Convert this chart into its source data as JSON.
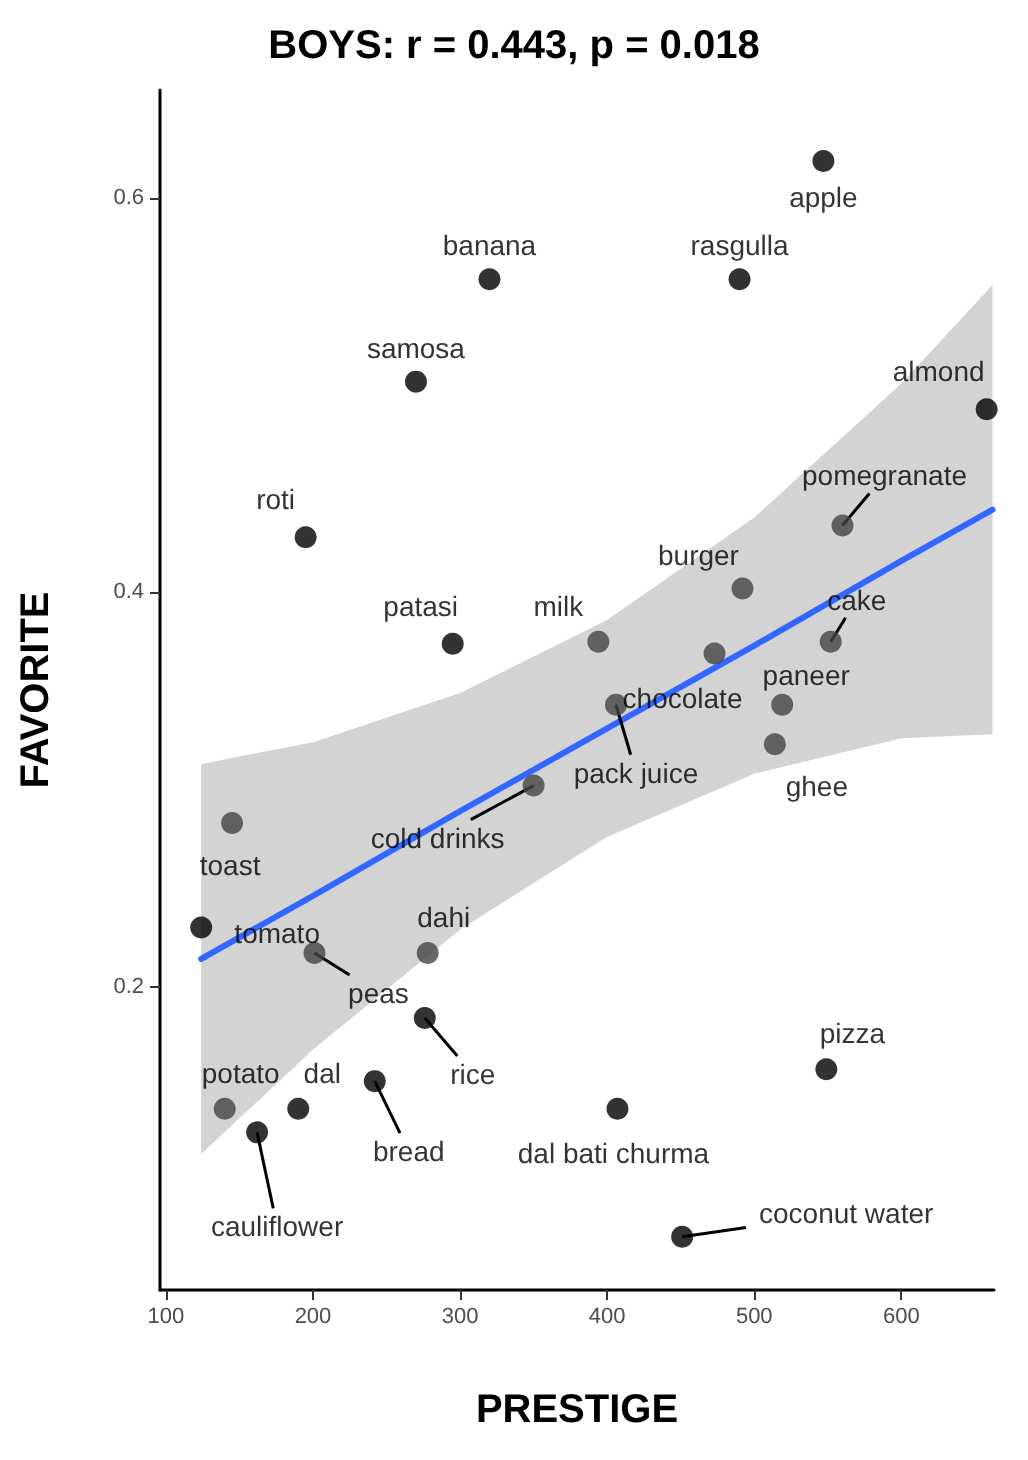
{
  "chart_data": {
    "type": "scatter",
    "title": "BOYS: r = 0.443, p = 0.018",
    "xlabel": "PRESTIGE",
    "ylabel": "FAVORITE",
    "xlim": [
      96,
      663
    ],
    "xticks": [
      100,
      200,
      300,
      400,
      500,
      600
    ],
    "ylim": [
      0.046,
      0.655
    ],
    "yticks": [
      0.2,
      0.4,
      0.6
    ],
    "grid": false,
    "series": [
      {
        "marker": "circle",
        "color": "#000000",
        "x": [
          547,
          320,
          490,
          270,
          658,
          195,
          560,
          492,
          295,
          394,
          473,
          552,
          519,
          514,
          406,
          350,
          145,
          124,
          201,
          278,
          276,
          549,
          242,
          140,
          190,
          407,
          162,
          451
        ],
        "values": [
          0.619,
          0.559,
          0.559,
          0.507,
          0.493,
          0.428,
          0.434,
          0.402,
          0.374,
          0.375,
          0.369,
          0.375,
          0.343,
          0.323,
          0.343,
          0.302,
          0.283,
          0.23,
          0.217,
          0.217,
          0.184,
          0.158,
          0.152,
          0.138,
          0.138,
          0.138,
          0.126,
          0.073
        ],
        "colors": [
          "#000000",
          "#000000",
          "#000000",
          "#000000",
          "#000000",
          "#000000",
          "#444444",
          "#444444",
          "#000000",
          "#444444",
          "#444444",
          "#444444",
          "#444444",
          "#444444",
          "#444444",
          "#444444",
          "#444444",
          "#000000",
          "#444444",
          "#444444",
          "#000000",
          "#000000",
          "#000000",
          "#444444",
          "#000000",
          "#000000",
          "#000000",
          "#000000"
        ]
      },
      {
        "type": "line",
        "color": "#3366ff",
        "line_style": "solid",
        "x": [
          124,
          200,
          300,
          400,
          500,
          600,
          662
        ],
        "values": [
          0.214,
          0.246,
          0.289,
          0.331,
          0.373,
          0.416,
          0.442
        ],
        "lower": [
          0.115,
          0.168,
          0.229,
          0.276,
          0.308,
          0.326,
          0.328
        ],
        "upper": [
          0.313,
          0.324,
          0.349,
          0.386,
          0.438,
          0.506,
          0.556
        ]
      }
    ],
    "annotations": [
      {
        "text": "apple",
        "x": 547,
        "y": 0.619
      },
      {
        "text": "banana",
        "x": 320,
        "y": 0.559
      },
      {
        "text": "rasgulla",
        "x": 490,
        "y": 0.559
      },
      {
        "text": "samosa",
        "x": 270,
        "y": 0.507
      },
      {
        "text": "almond",
        "x": 658,
        "y": 0.493
      },
      {
        "text": "roti",
        "x": 195,
        "y": 0.428
      },
      {
        "text": "pomegranate",
        "x": 560,
        "y": 0.434
      },
      {
        "text": "burger",
        "x": 492,
        "y": 0.402
      },
      {
        "text": "patasi",
        "x": 295,
        "y": 0.374
      },
      {
        "text": "milk",
        "x": 394,
        "y": 0.375
      },
      {
        "text": "chocolate",
        "x": 473,
        "y": 0.369
      },
      {
        "text": "cake",
        "x": 552,
        "y": 0.375
      },
      {
        "text": "paneer",
        "x": 519,
        "y": 0.343
      },
      {
        "text": "ghee",
        "x": 514,
        "y": 0.323
      },
      {
        "text": "pack juice",
        "x": 406,
        "y": 0.343
      },
      {
        "text": "cold drinks",
        "x": 350,
        "y": 0.302
      },
      {
        "text": "toast",
        "x": 145,
        "y": 0.283
      },
      {
        "text": "tomato",
        "x": 124,
        "y": 0.23
      },
      {
        "text": "peas",
        "x": 201,
        "y": 0.217
      },
      {
        "text": "dahi",
        "x": 278,
        "y": 0.217
      },
      {
        "text": "rice",
        "x": 276,
        "y": 0.184
      },
      {
        "text": "pizza",
        "x": 549,
        "y": 0.158
      },
      {
        "text": "bread",
        "x": 242,
        "y": 0.152
      },
      {
        "text": "potato",
        "x": 140,
        "y": 0.138
      },
      {
        "text": "dal",
        "x": 190,
        "y": 0.138
      },
      {
        "text": "dal bati churma",
        "x": 407,
        "y": 0.138
      },
      {
        "text": "cauliflower",
        "x": 162,
        "y": 0.126
      },
      {
        "text": "coconut water",
        "x": 451,
        "y": 0.073
      }
    ]
  }
}
